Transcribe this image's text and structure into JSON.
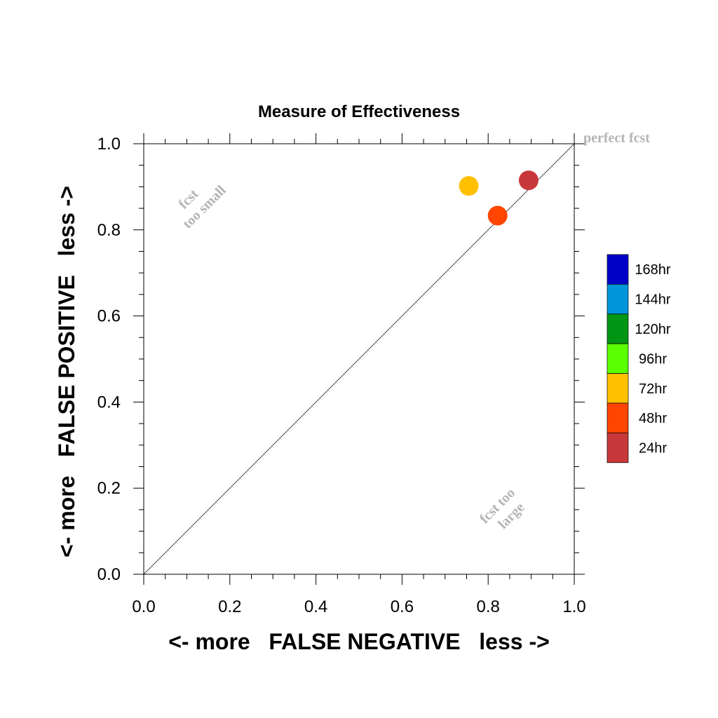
{
  "chart_data": {
    "type": "scatter",
    "title": "Measure of Effectiveness",
    "xlabel": "<- more   FALSE NEGATIVE   less ->",
    "ylabel": "<- more   FALSE POSITIVE   less ->",
    "xlim": [
      0.0,
      1.0
    ],
    "ylim": [
      0.0,
      1.0
    ],
    "x_ticks": [
      "0.0",
      "0.2",
      "0.4",
      "0.6",
      "0.8",
      "1.0"
    ],
    "y_ticks": [
      "0.0",
      "0.2",
      "0.4",
      "0.6",
      "0.8",
      "1.0"
    ],
    "grid": false,
    "reference_line": "diagonal",
    "annotations": {
      "perfect": "perfect fcst",
      "small_line1": "fcst",
      "small_line2": "too small",
      "large_line1": "fcst too",
      "large_line2": "large"
    },
    "points": [
      {
        "label": "72hr",
        "x": 0.755,
        "y": 0.902,
        "color": "#ffc000"
      },
      {
        "label": "48hr",
        "x": 0.822,
        "y": 0.833,
        "color": "#ff4500"
      },
      {
        "label": "24hr",
        "x": 0.894,
        "y": 0.915,
        "color": "#c8383a"
      }
    ],
    "legend": {
      "position": "right",
      "items": [
        {
          "label": "168hr",
          "color": "#0000c8"
        },
        {
          "label": "144hr",
          "color": "#0096dc"
        },
        {
          "label": "120hr",
          "color": "#009614"
        },
        {
          "label": "96hr",
          "color": "#5aff00"
        },
        {
          "label": "72hr",
          "color": "#ffc000"
        },
        {
          "label": "48hr",
          "color": "#ff4500"
        },
        {
          "label": "24hr",
          "color": "#c8383a"
        }
      ]
    }
  }
}
